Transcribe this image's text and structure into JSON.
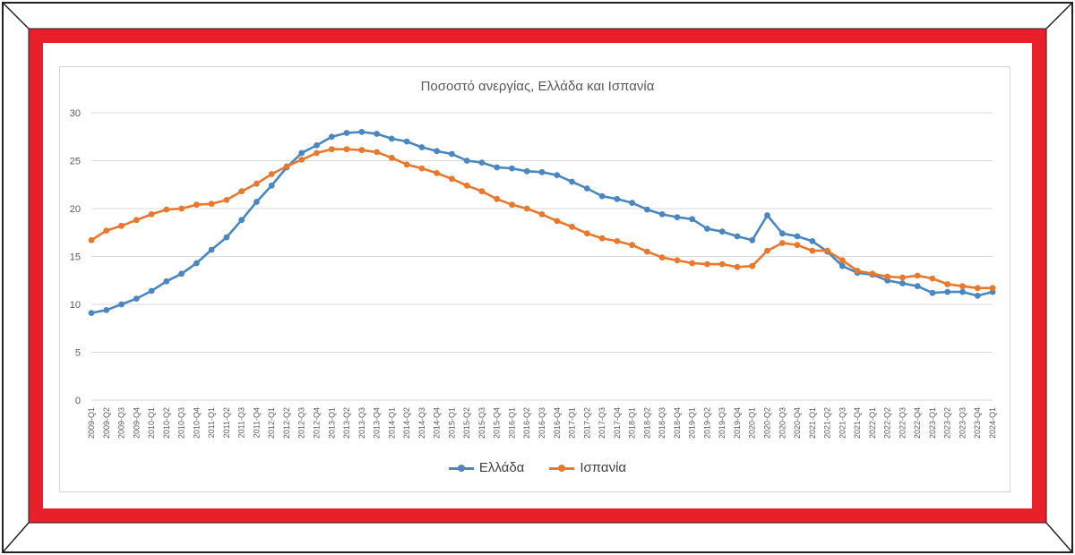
{
  "colors": {
    "frame_red": "#e8202a",
    "greece": "#4a86c0",
    "spain": "#e8782e",
    "grid": "#d9d9d9",
    "axis_text": "#595959"
  },
  "chart_data": {
    "type": "line",
    "title": "Ποσοστό ανεργίας, Ελλάδα και Ισπανία",
    "xlabel": "",
    "ylabel": "",
    "ylim": [
      0,
      30
    ],
    "yticks": [
      0,
      5,
      10,
      15,
      20,
      25,
      30
    ],
    "grid": true,
    "legend_position": "bottom",
    "categories": [
      "2009-Q1",
      "2009-Q2",
      "2009-Q3",
      "2009-Q4",
      "2010-Q1",
      "2010-Q2",
      "2010-Q3",
      "2010-Q4",
      "2011-Q1",
      "2011-Q2",
      "2011-Q3",
      "2011-Q4",
      "2012-Q1",
      "2012-Q2",
      "2012-Q3",
      "2012-Q4",
      "2013-Q1",
      "2013-Q2",
      "2013-Q3",
      "2013-Q4",
      "2014-Q1",
      "2014-Q2",
      "2014-Q3",
      "2014-Q4",
      "2015-Q1",
      "2015-Q2",
      "2015-Q3",
      "2015-Q4",
      "2016-Q1",
      "2016-Q2",
      "2016-Q3",
      "2016-Q4",
      "2017-Q1",
      "2017-Q2",
      "2017-Q3",
      "2017-Q4",
      "2018-Q1",
      "2018-Q2",
      "2018-Q3",
      "2018-Q4",
      "2019-Q1",
      "2019-Q2",
      "2019-Q3",
      "2019-Q4",
      "2020-Q1",
      "2020-Q2",
      "2020-Q3",
      "2020-Q4",
      "2021-Q1",
      "2021-Q2",
      "2021-Q3",
      "2021-Q4",
      "2022-Q1",
      "2022-Q2",
      "2022-Q3",
      "2022-Q4",
      "2023-Q1",
      "2023-Q2",
      "2023-Q3",
      "2023-Q4",
      "2024-Q1"
    ],
    "series": [
      {
        "name": "Ελλάδα",
        "color": "#4a86c0",
        "values": [
          9.1,
          9.4,
          10.0,
          10.6,
          11.4,
          12.4,
          13.2,
          14.3,
          15.7,
          17.0,
          18.8,
          20.7,
          22.4,
          24.3,
          25.8,
          26.6,
          27.5,
          27.9,
          28.0,
          27.8,
          27.3,
          27.0,
          26.4,
          26.0,
          25.7,
          25.0,
          24.8,
          24.3,
          24.2,
          23.9,
          23.8,
          23.5,
          22.8,
          22.1,
          21.3,
          21.0,
          20.6,
          19.9,
          19.4,
          19.1,
          18.9,
          17.9,
          17.6,
          17.1,
          16.7,
          19.3,
          17.4,
          17.1,
          16.6,
          15.5,
          14.0,
          13.3,
          13.1,
          12.5,
          12.2,
          11.9,
          11.2,
          11.3,
          11.3,
          10.9,
          11.3
        ]
      },
      {
        "name": "Ισπανία",
        "color": "#e8782e",
        "values": [
          16.7,
          17.7,
          18.2,
          18.8,
          19.4,
          19.9,
          20.0,
          20.4,
          20.5,
          20.9,
          21.8,
          22.6,
          23.6,
          24.4,
          25.1,
          25.8,
          26.2,
          26.2,
          26.1,
          25.9,
          25.3,
          24.6,
          24.2,
          23.7,
          23.1,
          22.4,
          21.8,
          21.0,
          20.4,
          20.0,
          19.4,
          18.7,
          18.1,
          17.4,
          16.9,
          16.6,
          16.2,
          15.5,
          14.9,
          14.6,
          14.3,
          14.2,
          14.2,
          13.9,
          14.0,
          15.6,
          16.4,
          16.2,
          15.6,
          15.6,
          14.6,
          13.5,
          13.2,
          12.9,
          12.8,
          13.0,
          12.7,
          12.1,
          11.9,
          11.7,
          11.7
        ]
      }
    ]
  }
}
